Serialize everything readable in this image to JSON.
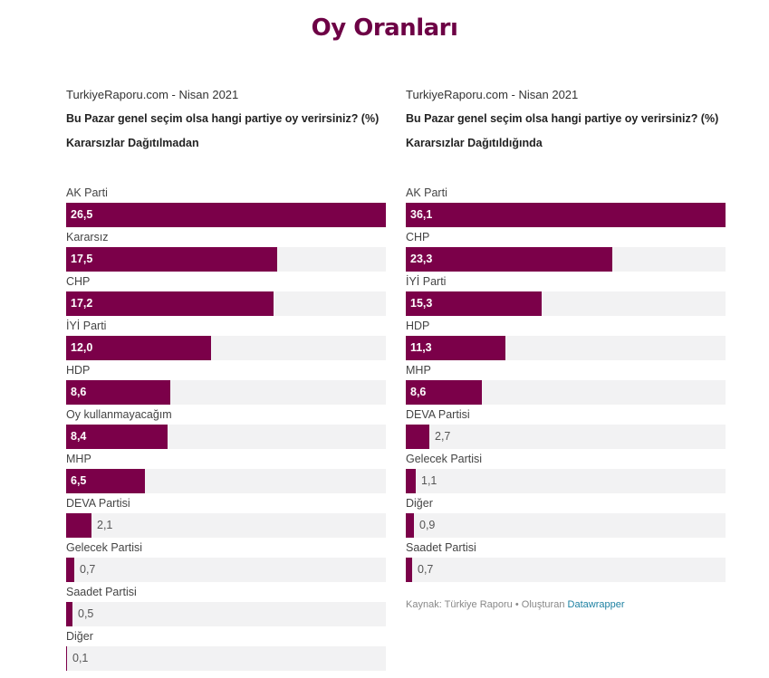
{
  "page_title": "Oy Oranları",
  "chart_data": [
    {
      "type": "bar",
      "orientation": "horizontal",
      "source_line": "TurkiyeRaporu.com - Nisan 2021",
      "title": "Bu Pazar genel seçim olsa hangi partiye oy verirsiniz? (%)",
      "subtitle": "Kararsızlar Dağıtılmadan",
      "categories": [
        "AK Parti",
        "Kararsız",
        "CHP",
        "İYİ Parti",
        "HDP",
        "Oy kullanmayacağım",
        "MHP",
        "DEVA Partisi",
        "Gelecek Partisi",
        "Saadet Partisi",
        "Diğer"
      ],
      "values": [
        26.5,
        17.5,
        17.2,
        12.0,
        8.6,
        8.4,
        6.5,
        2.1,
        0.7,
        0.5,
        0.1
      ],
      "value_labels": [
        "26,5",
        "17,5",
        "17,2",
        "12,0",
        "8,6",
        "8,4",
        "6,5",
        "2,1",
        "0,7",
        "0,5",
        "0,1"
      ],
      "xlim": [
        0,
        26.5
      ],
      "bar_color": "#7b0049",
      "track_color": "#f2f2f3",
      "grid": false,
      "legend": "none"
    },
    {
      "type": "bar",
      "orientation": "horizontal",
      "source_line": "TurkiyeRaporu.com - Nisan 2021",
      "title": "Bu Pazar genel seçim olsa hangi partiye oy verirsiniz? (%)",
      "subtitle": "Kararsızlar Dağıtıldığında",
      "categories": [
        "AK Parti",
        "CHP",
        "İYİ Parti",
        "HDP",
        "MHP",
        "DEVA Partisi",
        "Gelecek Partisi",
        "Diğer",
        "Saadet Partisi"
      ],
      "values": [
        36.1,
        23.3,
        15.3,
        11.3,
        8.6,
        2.7,
        1.1,
        0.9,
        0.7
      ],
      "value_labels": [
        "36,1",
        "23,3",
        "15,3",
        "11,3",
        "8,6",
        "2,7",
        "1,1",
        "0,9",
        "0,7"
      ],
      "xlim": [
        0,
        36.1
      ],
      "bar_color": "#7b0049",
      "track_color": "#f2f2f3",
      "grid": false,
      "legend": "none"
    }
  ],
  "footer": {
    "source_text": "Kaynak: Türkiye Raporu • Oluşturan ",
    "link_text": "Datawrapper"
  }
}
